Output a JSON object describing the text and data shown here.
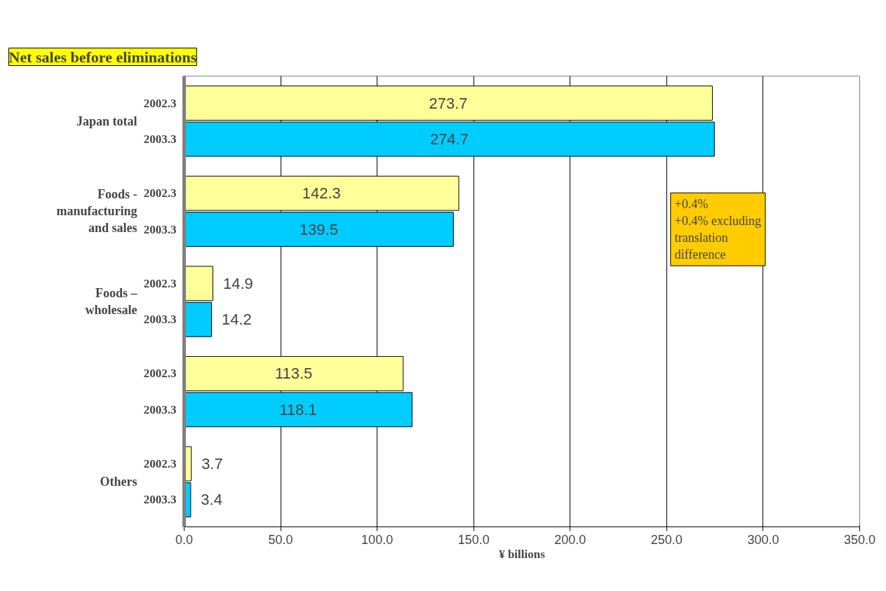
{
  "chart_data": {
    "type": "bar",
    "orientation": "horizontal",
    "title": "Net sales before eliminations",
    "xlabel": "¥ billions",
    "categories": [
      "Japan total",
      "Foods - manufacturing and sales",
      "Foods – wholesale",
      null,
      "Others"
    ],
    "series": [
      {
        "name": "2002.3",
        "color": "#ffff99",
        "values": [
          273.7,
          142.3,
          14.9,
          113.5,
          3.7
        ]
      },
      {
        "name": "2003.3",
        "color": "#00ccff",
        "values": [
          274.7,
          139.5,
          14.2,
          118.1,
          3.4
        ]
      }
    ],
    "data_labels": true,
    "xlim": [
      0,
      350
    ],
    "xticks": [
      {
        "value": 0,
        "label": "0.0"
      },
      {
        "value": 50,
        "label": "50.0"
      },
      {
        "value": 100,
        "label": "100.0"
      },
      {
        "value": 150,
        "label": "150.0"
      },
      {
        "value": 200,
        "label": "200.0"
      },
      {
        "value": 250,
        "label": "250.0"
      },
      {
        "value": 300,
        "label": "300.0"
      },
      {
        "value": 350,
        "label": "350.0"
      }
    ],
    "grid": "x",
    "legend": false,
    "annotations": [
      "+0.4%\n+0.4% excluding\ntranslation\ndifference"
    ]
  }
}
